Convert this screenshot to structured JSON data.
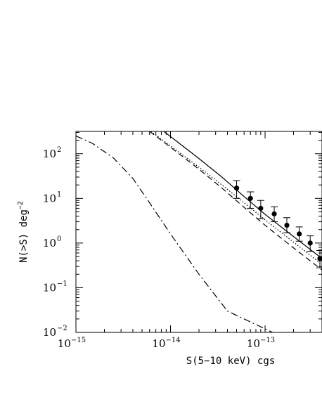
{
  "chart_data": {
    "type": "line",
    "title": "",
    "xlabel": "S(5−10 keV) cgs",
    "ylabel": {
      "base": "N(>S) deg",
      "exponent": "−2"
    },
    "xscale": "log",
    "yscale": "log",
    "xlim": [
      1e-15,
      4e-13
    ],
    "ylim": [
      0.01,
      316
    ],
    "x_ticks": [
      {
        "base": "10",
        "exp": "−15"
      },
      {
        "base": "10",
        "exp": "−14"
      },
      {
        "base": "10",
        "exp": "−13"
      }
    ],
    "y_ticks": [
      {
        "base": "10",
        "exp": "−2"
      },
      {
        "base": "10",
        "exp": "−1"
      },
      {
        "base": "10",
        "exp": "0"
      },
      {
        "base": "10",
        "exp": "1"
      },
      {
        "base": "10",
        "exp": "2"
      }
    ],
    "grid": false,
    "legend": "none",
    "series": [
      {
        "style": "solid",
        "points": [
          [
            8.5e-15,
            316
          ],
          [
            1.2e-14,
            180
          ],
          [
            2e-14,
            78
          ],
          [
            3.5e-14,
            30
          ],
          [
            6e-14,
            11
          ],
          [
            1e-13,
            4.4
          ],
          [
            2e-13,
            1.4
          ],
          [
            4e-13,
            0.45
          ]
        ]
      },
      {
        "style": "dotted",
        "points": [
          [
            6.2e-15,
            316
          ],
          [
            1e-14,
            150
          ],
          [
            2e-14,
            50
          ],
          [
            3.5e-14,
            20
          ],
          [
            6e-14,
            8
          ],
          [
            1e-13,
            3.3
          ],
          [
            2e-13,
            1.05
          ],
          [
            4e-13,
            0.33
          ]
        ]
      },
      {
        "style": "dashed",
        "points": [
          [
            6e-15,
            316
          ],
          [
            1e-14,
            140
          ],
          [
            2e-14,
            45
          ],
          [
            3.5e-14,
            17
          ],
          [
            6e-14,
            6.3
          ],
          [
            1e-13,
            2.5
          ],
          [
            2e-13,
            0.78
          ],
          [
            4e-13,
            0.25
          ]
        ]
      },
      {
        "style": "dashdot",
        "points": [
          [
            1e-15,
            250
          ],
          [
            1.5e-15,
            170
          ],
          [
            2.5e-15,
            80
          ],
          [
            4e-15,
            28
          ],
          [
            6e-15,
            8
          ],
          [
            1e-14,
            1.6
          ],
          [
            2e-14,
            0.2
          ],
          [
            4e-14,
            0.03
          ],
          [
            1.2e-13,
            0.01
          ]
        ]
      }
    ],
    "data_points": {
      "marker": "filled circle",
      "points": [
        {
          "x": 5e-14,
          "y": 17,
          "ylow": 10,
          "yhigh": 25
        },
        {
          "x": 7e-14,
          "y": 10,
          "ylow": 6,
          "yhigh": 14
        },
        {
          "x": 9e-14,
          "y": 6,
          "ylow": 3.5,
          "yhigh": 9
        },
        {
          "x": 1.25e-13,
          "y": 4.5,
          "ylow": 3,
          "yhigh": 6.5
        },
        {
          "x": 1.7e-13,
          "y": 2.5,
          "ylow": 1.7,
          "yhigh": 3.7
        },
        {
          "x": 2.3e-13,
          "y": 1.6,
          "ylow": 1.1,
          "yhigh": 2.3
        },
        {
          "x": 3e-13,
          "y": 1.0,
          "ylow": 0.65,
          "yhigh": 1.45
        },
        {
          "x": 3.8e-13,
          "y": 0.45,
          "ylow": 0.28,
          "yhigh": 0.68
        }
      ]
    }
  }
}
